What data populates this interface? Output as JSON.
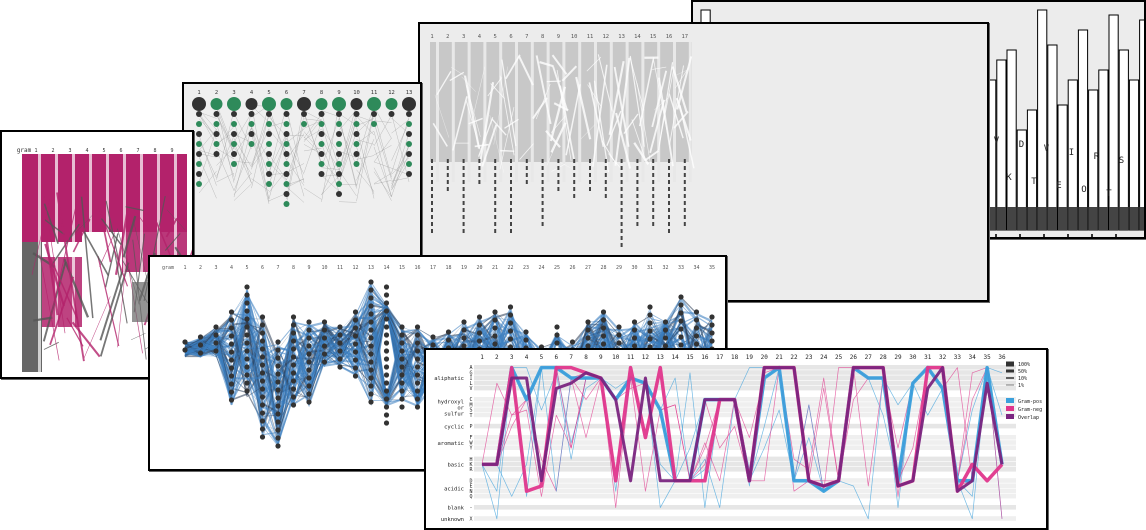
{
  "panels": {
    "p1": {
      "header": "gram",
      "columns": [
        "1",
        "2",
        "3",
        "4",
        "5",
        "6",
        "7",
        "8",
        "9"
      ],
      "colors": {
        "accent": "#b3226b",
        "gray": "#666666"
      }
    },
    "p2": {
      "columns": [
        "1",
        "2",
        "3",
        "4",
        "5",
        "6",
        "7",
        "8",
        "9",
        "10",
        "11",
        "12",
        "13"
      ],
      "colors": {
        "node": "#333333",
        "accent": "#2e8a5a"
      }
    },
    "p3": {
      "columns": [
        "1",
        "2",
        "3",
        "4",
        "5",
        "6",
        "7",
        "8",
        "9",
        "10",
        "11",
        "12",
        "13",
        "14",
        "15",
        "16",
        "17"
      ],
      "colors": {
        "band": "#c8c8c8"
      }
    },
    "p4": {
      "letters": [
        "R",
        "V",
        "H",
        "I",
        "W",
        "L",
        "A",
        "P",
        "E",
        "A",
        "K",
        "S",
        "T",
        "R",
        "V",
        "D",
        "L",
        "K",
        "F",
        "G",
        "N",
        "E",
        "C",
        "V",
        "K",
        "D",
        "T",
        "V",
        "E",
        "I",
        "O",
        "R",
        "T",
        "S"
      ],
      "colors": {
        "bar_stroke": "#000000"
      }
    },
    "p5": {
      "header": "gram",
      "columns": [
        "1",
        "2",
        "3",
        "4",
        "5",
        "6",
        "7",
        "8",
        "9",
        "10",
        "11",
        "12",
        "13",
        "14",
        "15",
        "16",
        "17",
        "18",
        "19",
        "20",
        "21",
        "22",
        "23",
        "24",
        "25",
        "26",
        "27",
        "28",
        "29",
        "30",
        "31",
        "32",
        "33",
        "34",
        "35"
      ],
      "colors": {
        "line": "#3a7dc0",
        "node": "#333333"
      }
    },
    "p6": {
      "columns": [
        "1",
        "2",
        "3",
        "4",
        "5",
        "6",
        "7",
        "8",
        "9",
        "10",
        "11",
        "12",
        "13",
        "14",
        "15",
        "16",
        "17",
        "18",
        "19",
        "20",
        "21",
        "22",
        "23",
        "24",
        "25",
        "26",
        "27",
        "28",
        "29",
        "30",
        "31",
        "32",
        "33",
        "34",
        "35",
        "36"
      ],
      "groups": [
        {
          "name": "aliphatic",
          "letters": [
            "A",
            "G",
            "I",
            "L",
            "V"
          ]
        },
        {
          "name": "hydroxyl\nor\nsulfur",
          "letters": [
            "C",
            "M",
            "S",
            "T"
          ]
        },
        {
          "name": "cyclic",
          "letters": [
            "P"
          ]
        },
        {
          "name": "aromatic",
          "letters": [
            "F",
            "W",
            "Y"
          ]
        },
        {
          "name": "basic",
          "letters": [
            "H",
            "K",
            "R"
          ]
        },
        {
          "name": "acidic",
          "letters": [
            "D",
            "E",
            "N",
            "Q"
          ]
        },
        {
          "name": "blank",
          "letters": [
            "-"
          ]
        },
        {
          "name": "unknown",
          "letters": [
            "X"
          ]
        }
      ],
      "thickness_legend": [
        "100%",
        "50%",
        "10%",
        "1%"
      ],
      "color_legend": [
        {
          "label": "Gram-pos",
          "color": "#3aa0dc"
        },
        {
          "label": "Gram-neg",
          "color": "#e0368c"
        },
        {
          "label": "Overlap",
          "color": "#7a2580"
        }
      ]
    }
  }
}
